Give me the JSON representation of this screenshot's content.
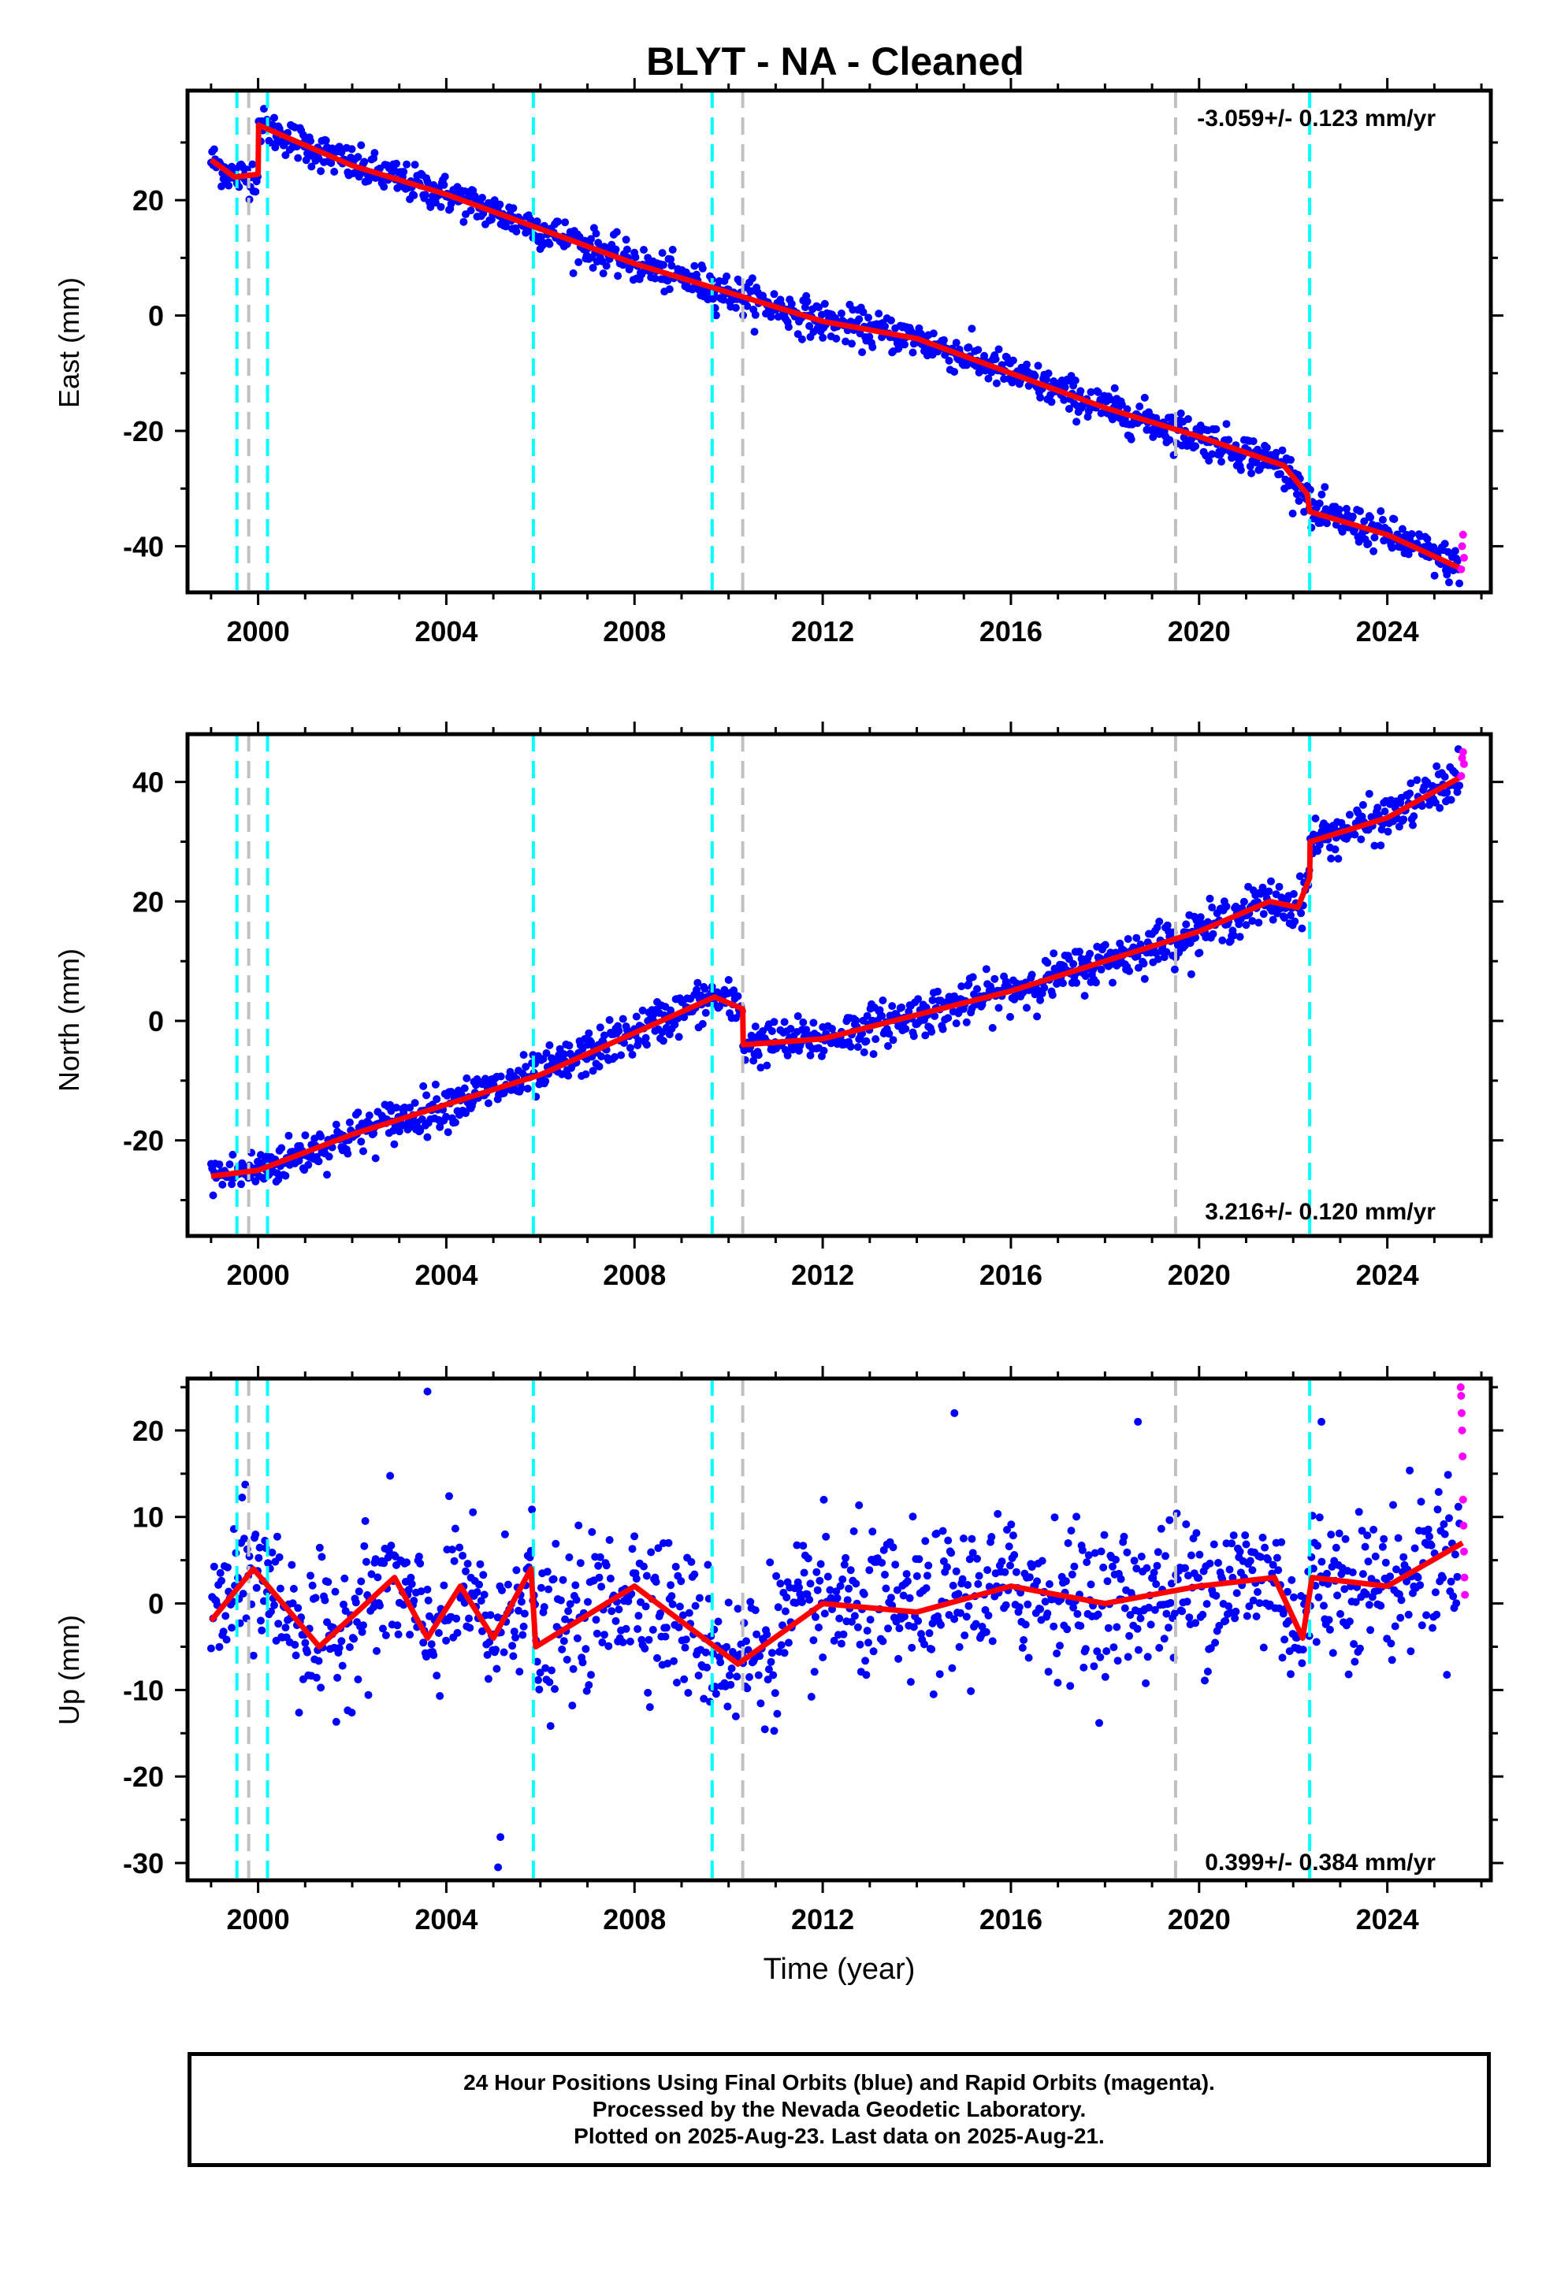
{
  "title": "BLYT  - NA - Cleaned",
  "footer": {
    "line1": "24 Hour Positions Using Final Orbits (blue) and Rapid Orbits (magenta).",
    "line2": "Processed by the Nevada Geodetic Laboratory.",
    "line3": "Plotted on 2025-Aug-23. Last data on 2025-Aug-21."
  },
  "colors": {
    "final_orbits": "#0000ff",
    "rapid_orbits": "#ff00ff",
    "model": "#ff0000",
    "event_equipment": "#00ffff",
    "event_other": "#c0c0c0"
  },
  "chart_data": [
    {
      "type": "scatter",
      "ylabel": "East (mm)",
      "xlabel": "",
      "xlim": [
        1998.5,
        2026.2
      ],
      "ylim": [
        -48,
        39
      ],
      "xticks": [
        2000,
        2004,
        2008,
        2012,
        2016,
        2020,
        2024
      ],
      "yticks": [
        -40,
        -20,
        0,
        20
      ],
      "rate_label": "-3.059+/- 0.123 mm/yr",
      "rate_position": "top-right",
      "equipment_events": [
        1999.55,
        2000.2,
        2005.85,
        2009.65,
        2022.35
      ],
      "other_events": [
        1999.8,
        2010.3,
        2019.5
      ],
      "series_points": {
        "name": "Final orbits",
        "x_range": [
          1999.0,
          2025.55
        ],
        "noise_mm": 1.6
      },
      "rapid_points": {
        "name": "Rapid orbits",
        "x": [
          2025.57,
          2025.59,
          2025.61,
          2025.63
        ],
        "y": [
          -44,
          -40,
          -38,
          -42
        ]
      },
      "model": {
        "x": [
          1999.0,
          1999.5,
          2000.0,
          2000.01,
          2002.0,
          2004.0,
          2006.0,
          2008.0,
          2010.0,
          2012.0,
          2014.0,
          2016.0,
          2018.0,
          2020.0,
          2021.8,
          2022.3,
          2022.35,
          2024.0,
          2025.6
        ],
        "y": [
          27,
          24,
          24.5,
          33,
          26,
          21,
          15,
          9,
          4,
          -1,
          -4,
          -10,
          -16,
          -21,
          -26,
          -31,
          -34,
          -38,
          -44
        ]
      }
    },
    {
      "type": "scatter",
      "ylabel": "North (mm)",
      "xlabel": "",
      "xlim": [
        1998.5,
        2026.2
      ],
      "ylim": [
        -36,
        48
      ],
      "xticks": [
        2000,
        2004,
        2008,
        2012,
        2016,
        2020,
        2024
      ],
      "yticks": [
        -20,
        0,
        20,
        40
      ],
      "rate_label": "3.216+/- 0.120 mm/yr",
      "rate_position": "bottom-right",
      "equipment_events": [
        1999.55,
        2000.2,
        2005.85,
        2009.65,
        2022.35
      ],
      "other_events": [
        1999.8,
        2010.3,
        2019.5
      ],
      "series_points": {
        "name": "Final orbits",
        "x_range": [
          1999.0,
          2025.55
        ],
        "noise_mm": 1.8
      },
      "rapid_points": {
        "name": "Rapid orbits",
        "x": [
          2025.57,
          2025.59,
          2025.61,
          2025.63
        ],
        "y": [
          41,
          44,
          45,
          43
        ]
      },
      "model": {
        "x": [
          1999.0,
          2000.0,
          2002.0,
          2004.0,
          2006.0,
          2008.0,
          2009.7,
          2010.3,
          2010.31,
          2012.0,
          2014.0,
          2016.0,
          2018.0,
          2020.0,
          2021.5,
          2022.1,
          2022.35,
          2022.36,
          2024.0,
          2025.6
        ],
        "y": [
          -26,
          -25,
          -19,
          -14,
          -9,
          -2,
          4,
          2,
          -4,
          -3,
          1,
          5,
          10,
          15,
          20,
          19,
          24,
          30,
          34,
          41
        ]
      }
    },
    {
      "type": "scatter",
      "ylabel": "Up (mm)",
      "xlabel": "Time (year)",
      "xlim": [
        1998.5,
        2026.2
      ],
      "ylim": [
        -32,
        26
      ],
      "xticks": [
        2000,
        2004,
        2008,
        2012,
        2016,
        2020,
        2024
      ],
      "yticks": [
        -30,
        -20,
        -10,
        0,
        10,
        20
      ],
      "rate_label": "0.399+/- 0.384 mm/yr",
      "rate_position": "bottom-right",
      "equipment_events": [
        1999.55,
        2000.2,
        2005.85,
        2009.65,
        2022.35
      ],
      "other_events": [
        1999.8,
        2010.3,
        2019.5
      ],
      "series_points": {
        "name": "Final orbits",
        "x_range": [
          1999.0,
          2025.55
        ],
        "noise_mm": 4.2
      },
      "rapid_points": {
        "name": "Rapid orbits",
        "x": [
          2025.56,
          2025.57,
          2025.58,
          2025.59,
          2025.6,
          2025.61,
          2025.62,
          2025.63,
          2025.64,
          2025.65
        ],
        "y": [
          25,
          24,
          22,
          20,
          17,
          12,
          9,
          6,
          3,
          1
        ]
      },
      "outliers": {
        "x": [
          2003.6,
          2005.1,
          2005.15,
          2014.8,
          2018.7,
          2022.6
        ],
        "y": [
          24.5,
          -30.5,
          -27,
          22,
          21,
          21
        ]
      },
      "model": {
        "x": [
          1999.0,
          1999.9,
          2001.3,
          2002.9,
          2003.6,
          2004.3,
          2005.0,
          2005.8,
          2005.9,
          2008.0,
          2010.2,
          2012.0,
          2014.0,
          2016.0,
          2018.0,
          2020.0,
          2021.6,
          2022.2,
          2022.4,
          2024.0,
          2025.6
        ],
        "y": [
          -2,
          4,
          -5,
          3,
          -4,
          2,
          -4,
          4,
          -5,
          2,
          -7,
          0,
          -1,
          2,
          0,
          2,
          3,
          -4,
          3,
          2,
          7
        ]
      }
    }
  ]
}
